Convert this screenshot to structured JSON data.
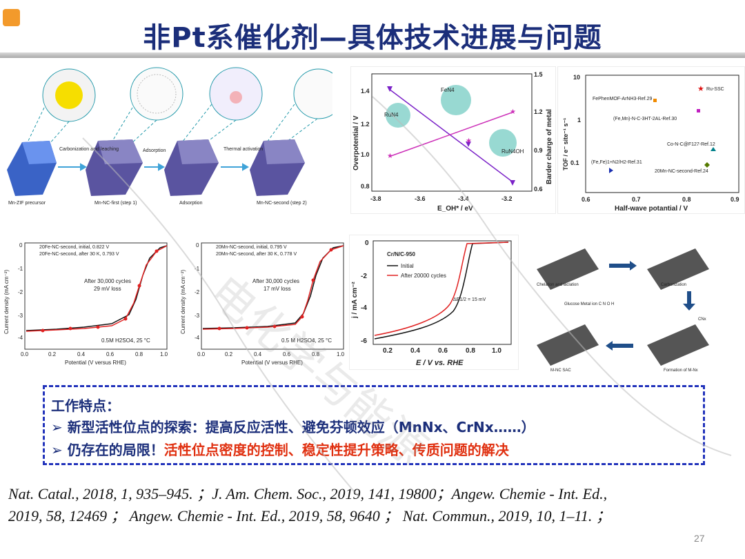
{
  "title": "非Pt系催化剂—具体技术进展与问题",
  "panel_a": {
    "steps": [
      "Mn-ZIF precursor",
      "Mn-NC-first (step 1)",
      "Adsorption",
      "Mn-NC-second (step 2)"
    ],
    "arrows": [
      "Carbonization acid leaching",
      "Adsorption",
      "Thermal activation"
    ]
  },
  "panel_b": {
    "ylabel_left": "Overpotential / V",
    "ylabel_right": "Barder charge of metal",
    "xlabel": "E_OH* / eV",
    "xticks": [
      "-3.8",
      "-3.6",
      "-3.4",
      "-3.2"
    ],
    "yticks_left": [
      "0.8",
      "1.0",
      "1.2",
      "1.4"
    ],
    "yticks_right": [
      "0.6",
      "0.9",
      "1.2",
      "1.5"
    ],
    "labels": [
      "FeN4",
      "RuN4",
      "RuN4OH"
    ]
  },
  "panel_c": {
    "ylabel": "TOF / e⁻ site⁻¹ s⁻¹",
    "xlabel": "Half-wave potantial / V",
    "xticks": [
      "0.6",
      "0.7",
      "0.8",
      "0.9"
    ],
    "yticks": [
      "10",
      "1",
      "0.1"
    ],
    "points": [
      {
        "label": "Ru-SSC",
        "color": "#d11"
      },
      {
        "label": "FePhenMOF-ArNH3-Ref.29",
        "color": "#f08a00"
      },
      {
        "label": "(Fe,Mn)-N-C-3HT-2AL-Ref.30",
        "color": "#c020c0"
      },
      {
        "label": "Co-N-C@F127-Ref.12",
        "color": "#00808a"
      },
      {
        "label": "(Fe,Fe)1+N2/H2-Ref.31",
        "color": "#1a2fb0"
      },
      {
        "label": "20Mn-NC-second-Ref.24",
        "color": "#557a00"
      }
    ]
  },
  "panel_d": {
    "ylabel": "Current density (mA cm⁻²)",
    "xlabel": "Potential (V versus RHE)",
    "xticks": [
      "0.0",
      "0.2",
      "0.4",
      "0.6",
      "0.8",
      "1.0"
    ],
    "yticks": [
      "0",
      "-1",
      "-2",
      "-3",
      "-4"
    ],
    "legend": [
      "20Fe-NC-second, initial, 0.822 V",
      "20Fe-NC-second, after 30 K, 0.793 V"
    ],
    "note1": "After 30,000 cycles",
    "note2": "29 mV loss",
    "electrolyte": "0.5M H2SO4, 25 °C"
  },
  "panel_e": {
    "ylabel": "Current density (mA cm⁻²)",
    "xlabel": "Potential (V versus RHE)",
    "xticks": [
      "0.0",
      "0.2",
      "0.4",
      "0.6",
      "0.8",
      "1.0"
    ],
    "yticks": [
      "0",
      "-1",
      "-2",
      "-3",
      "-4"
    ],
    "legend": [
      "20Mn-NC-second, initial, 0.795 V",
      "20Mn-NC-second, after 30 K, 0.778 V"
    ],
    "note1": "After 30,000 cycles",
    "note2": "17 mV loss",
    "electrolyte": "0.5 M H2SO4, 25 °C"
  },
  "panel_f": {
    "ylabel": "j / mA cm⁻²",
    "xlabel": "E / V vs. RHE",
    "xticks": [
      "0.2",
      "0.4",
      "0.6",
      "0.8",
      "1.0"
    ],
    "yticks": [
      "0",
      "-2",
      "-4",
      "-6"
    ],
    "sample": "Cr/N/C-950",
    "legend": [
      "Initial",
      "After 20000 cycles"
    ],
    "delta": "ΔE1/2 = 15 mV"
  },
  "panel_g": {
    "captions": [
      "Chelation and iaclation",
      "Carbonization",
      "M-NC SAC",
      "Formation of M-Nx",
      "CNx"
    ],
    "legend": "Glucose  Metal ion  C  N  O  H"
  },
  "features": {
    "heading": "工作特点：",
    "line1": "➢  新型活性位点的探索：提高反应活性、避免芬顿效应（MnNx、CrNx……）",
    "line2_prefix": "➢  仍存在的局限！",
    "line2_rest": "活性位点密度的控制、稳定性提升策略、传质问题的解决"
  },
  "references": {
    "line1": "Nat. Catal., 2018, 1, 935–945. ；J. Am. Chem. Soc., 2019, 141, 19800；Angew. Chemie - Int. Ed.,",
    "line2": "2019, 58, 12469 ；  Angew. Chemie - Int. Ed., 2019, 58, 9640 ；  Nat. Commun., 2019, 10, 1–11. ；"
  },
  "page_number": "27",
  "watermark": "电化学与能源",
  "colors": {
    "title": "#1b2e7a",
    "accent_red": "#e03010",
    "box_border": "#2233bb"
  }
}
